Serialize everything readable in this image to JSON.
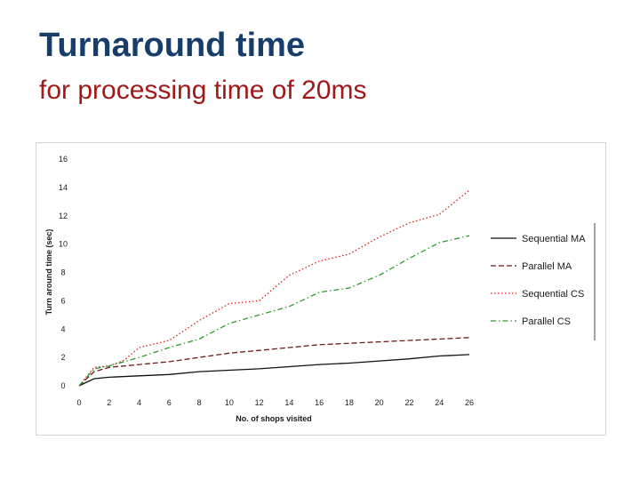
{
  "slide": {
    "title": "Turnaround time",
    "subtitle": "for processing time of 20ms"
  },
  "colors": {
    "title": "#173e6b",
    "subtitle": "#a01818"
  },
  "chart_data": {
    "type": "line",
    "xlabel": "No. of shops visited",
    "ylabel": "Turn around time (sec)",
    "xlim": [
      0,
      26
    ],
    "ylim": [
      0,
      16
    ],
    "x_ticks": [
      0,
      2,
      4,
      6,
      8,
      10,
      12,
      14,
      16,
      18,
      20,
      22,
      24,
      26
    ],
    "y_ticks": [
      0,
      2,
      4,
      6,
      8,
      10,
      12,
      14,
      16
    ],
    "grid": false,
    "legend_position": "right",
    "series": [
      {
        "name": "Sequential MA",
        "color": "#111111",
        "dash": "solid",
        "x": [
          0,
          1,
          2,
          4,
          6,
          8,
          10,
          12,
          14,
          16,
          18,
          20,
          22,
          24,
          26
        ],
        "y": [
          0,
          0.5,
          0.6,
          0.7,
          0.8,
          1.0,
          1.1,
          1.2,
          1.35,
          1.5,
          1.6,
          1.75,
          1.9,
          2.1,
          2.2
        ]
      },
      {
        "name": "Parallel MA",
        "color": "#6b1a1a",
        "dash": "dashed",
        "x": [
          0,
          1,
          2,
          4,
          6,
          8,
          10,
          12,
          14,
          16,
          18,
          20,
          22,
          24,
          26
        ],
        "y": [
          0,
          1.0,
          1.3,
          1.5,
          1.7,
          2.0,
          2.3,
          2.5,
          2.7,
          2.9,
          3.0,
          3.1,
          3.2,
          3.3,
          3.4
        ]
      },
      {
        "name": "Sequential CS",
        "color": "#d42020",
        "dash": "dotted",
        "x": [
          0,
          1,
          2,
          3,
          4,
          6,
          8,
          10,
          12,
          14,
          16,
          18,
          20,
          22,
          24,
          26
        ],
        "y": [
          0,
          1.3,
          1.4,
          1.8,
          2.7,
          3.2,
          4.6,
          5.8,
          6.0,
          7.8,
          8.8,
          9.3,
          10.5,
          11.5,
          12.1,
          13.8
        ]
      },
      {
        "name": "Parallel CS",
        "color": "#2e9a2e",
        "dash": "dashdot",
        "x": [
          0,
          1,
          2,
          4,
          6,
          8,
          10,
          12,
          14,
          16,
          18,
          20,
          22,
          24,
          26
        ],
        "y": [
          0,
          1.2,
          1.4,
          2.0,
          2.7,
          3.3,
          4.4,
          5.0,
          5.6,
          6.6,
          6.9,
          7.8,
          9.0,
          10.1,
          10.6
        ]
      }
    ]
  }
}
